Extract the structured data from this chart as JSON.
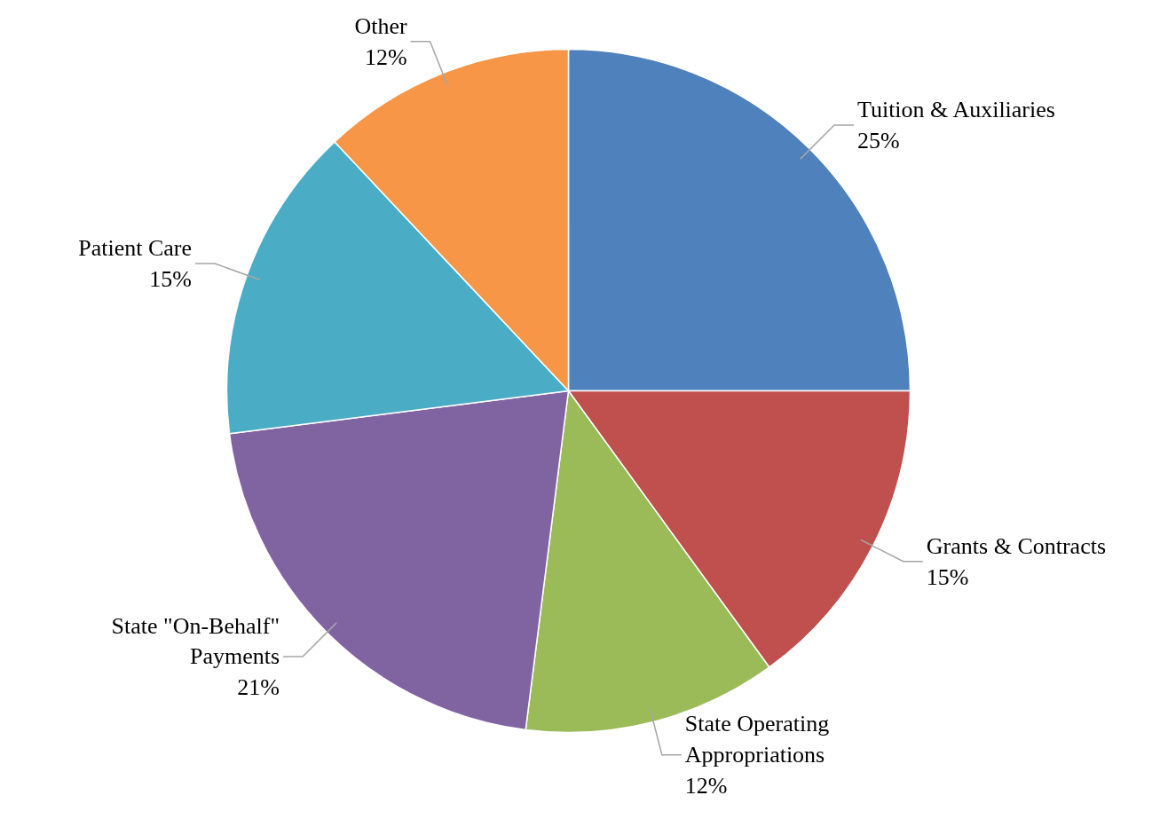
{
  "chart_data": {
    "type": "pie",
    "categories": [
      "Tuition & Auxiliaries",
      "Grants & Contracts",
      "State Operating Appropriations",
      "State \"On-Behalf\" Payments",
      "Patient Care",
      "Other"
    ],
    "values": [
      25,
      15,
      12,
      21,
      15,
      12
    ],
    "value_labels": [
      "25%",
      "15%",
      "12%",
      "21%",
      "15%",
      "12%"
    ],
    "colors": [
      "#4f81bd",
      "#c0504d",
      "#9bbb59",
      "#8064a2",
      "#4bacc6",
      "#f79646"
    ],
    "legend": false
  }
}
